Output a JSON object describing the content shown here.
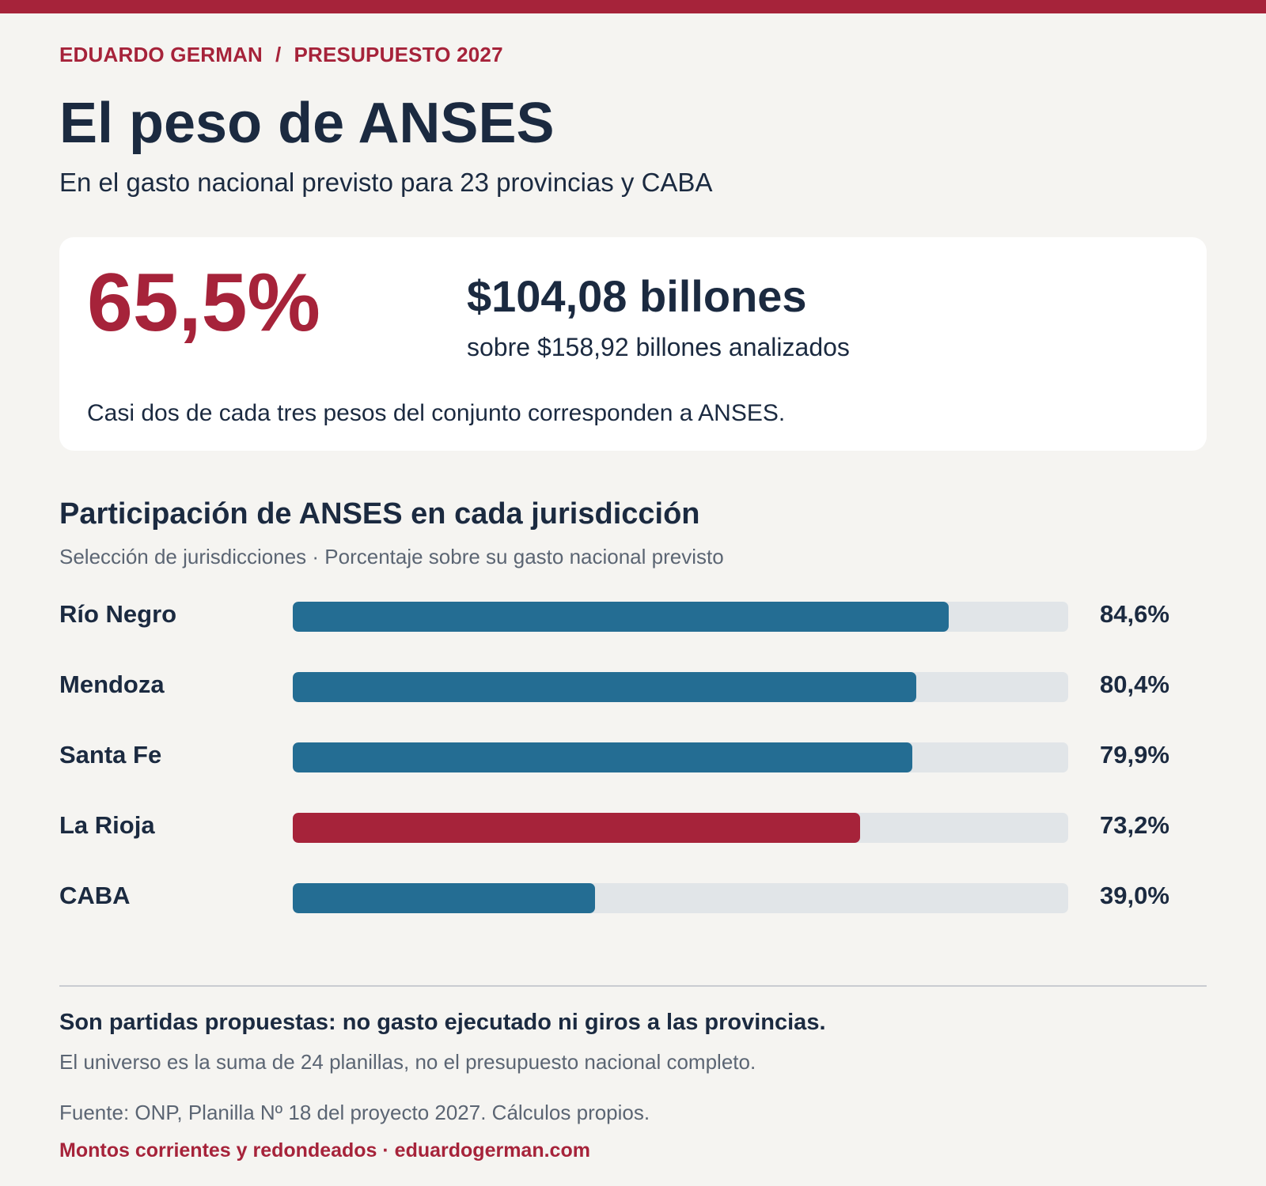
{
  "header": {
    "author": "EDUARDO GERMAN",
    "separator": "/",
    "series": "PRESUPUESTO 2027",
    "title": "El peso de ANSES",
    "subtitle": "En el gasto nacional previsto para 23 provincias y CABA"
  },
  "highlight": {
    "percent": "65,5%",
    "amount": "$104,08 billones",
    "amount_context": "sobre $158,92 billones analizados",
    "note": "Casi dos de cada tres pesos del conjunto corresponden a ANSES."
  },
  "colors": {
    "brand_red": "#a6233a",
    "bar_blue": "#246d93",
    "track": "#e1e5e8",
    "text_dark": "#1b2a40"
  },
  "chart_data": {
    "type": "bar",
    "orientation": "horizontal",
    "title": "Participación de ANSES en cada jurisdicción",
    "subtitle": "Selección de jurisdicciones · Porcentaje sobre su gasto nacional previsto",
    "categories": [
      "Río Negro",
      "Mendoza",
      "Santa Fe",
      "La Rioja",
      "CABA"
    ],
    "values": [
      84.6,
      80.4,
      79.9,
      73.2,
      39.0
    ],
    "value_labels": [
      "84,6%",
      "80,4%",
      "79,9%",
      "73,2%",
      "39,0%"
    ],
    "highlighted": [
      "La Rioja"
    ],
    "xlim": [
      0,
      100
    ],
    "unit": "%",
    "grid": false,
    "legend": "none"
  },
  "footer": {
    "caveat": "Son partidas propuestas: no gasto ejecutado ni giros a las provincias.",
    "scope_note": "El universo es la suma de 24 planillas, no el presupuesto nacional completo.",
    "source": "Fuente: ONP, Planilla Nº 18 del proyecto 2027. Cálculos propios.",
    "credit": "Montos corrientes y redondeados · eduardogerman.com"
  }
}
